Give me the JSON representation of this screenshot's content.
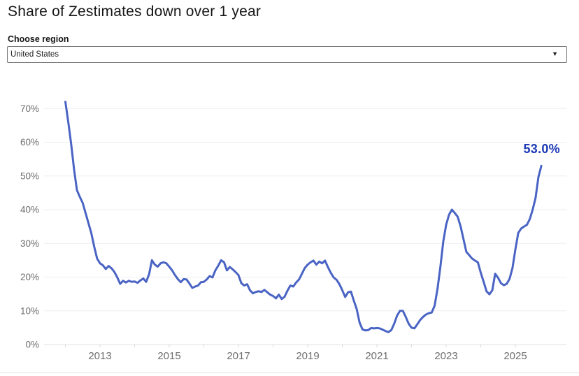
{
  "header": {
    "title": "Share of Zestimates down over 1 year"
  },
  "region": {
    "label": "Choose region",
    "selected": "United States"
  },
  "chart_data": {
    "type": "line",
    "title": "Share of Zestimates down over 1 year",
    "series_name": "United States",
    "frequency": "monthly",
    "start": {
      "year": 2012,
      "month": 1
    },
    "end": {
      "year": 2025,
      "month": 10
    },
    "unit": "%",
    "end_label": "53.0%",
    "latest_value": 53.0,
    "line_color": "#4a64c4",
    "end_label_color": "#1d39b4",
    "grid": true,
    "ylim": [
      0,
      75
    ],
    "y_axis": {
      "ticks": [
        0,
        10,
        20,
        30,
        40,
        50,
        60,
        70
      ],
      "tick_labels": [
        "0%",
        "10%",
        "20%",
        "30%",
        "40%",
        "50%",
        "60%",
        "70%"
      ]
    },
    "x_axis": {
      "tick_years": [
        2012,
        2013,
        2014,
        2015,
        2016,
        2017,
        2018,
        2019,
        2020,
        2021,
        2022,
        2023,
        2024,
        2025
      ],
      "labeled_years": [
        2013,
        2015,
        2017,
        2019,
        2021,
        2023,
        2025
      ]
    },
    "values": [
      72.0,
      66.0,
      59.5,
      52.0,
      45.8,
      43.8,
      42.0,
      39.0,
      36.0,
      33.0,
      29.0,
      25.5,
      24.1,
      23.5,
      22.4,
      23.3,
      22.6,
      21.5,
      19.9,
      18.0,
      18.9,
      18.4,
      18.9,
      18.6,
      18.7,
      18.3,
      19.0,
      19.6,
      18.6,
      20.8,
      25.0,
      23.7,
      23.1,
      24.1,
      24.4,
      24.1,
      23.1,
      22.0,
      20.6,
      19.4,
      18.5,
      19.4,
      19.3,
      18.1,
      16.8,
      17.2,
      17.5,
      18.5,
      18.6,
      19.3,
      20.3,
      19.9,
      22.0,
      23.4,
      25.0,
      24.4,
      22.0,
      23.0,
      22.3,
      21.5,
      20.6,
      18.2,
      17.5,
      17.9,
      16.1,
      15.2,
      15.6,
      15.8,
      15.6,
      16.2,
      15.5,
      14.8,
      14.4,
      13.7,
      14.8,
      13.5,
      14.2,
      16.0,
      17.5,
      17.2,
      18.4,
      19.3,
      21.0,
      22.7,
      23.7,
      24.4,
      24.9,
      23.7,
      24.6,
      24.1,
      24.9,
      23.0,
      21.3,
      19.9,
      19.2,
      17.9,
      16.1,
      14.1,
      15.5,
      15.7,
      13.0,
      10.5,
      6.5,
      4.5,
      4.2,
      4.3,
      4.9,
      4.8,
      4.9,
      4.8,
      4.4,
      4.0,
      3.7,
      4.3,
      6.2,
      8.6,
      10.0,
      10.0,
      8.2,
      6.2,
      5.0,
      4.8,
      6.0,
      7.3,
      8.2,
      8.9,
      9.3,
      9.5,
      11.5,
      16.5,
      23.0,
      30.5,
      35.5,
      38.5,
      40.0,
      39.0,
      37.9,
      35.1,
      31.3,
      27.5,
      26.5,
      25.5,
      24.9,
      24.4,
      21.3,
      18.6,
      15.8,
      14.9,
      16.1,
      21.0,
      19.8,
      18.2,
      17.6,
      18.0,
      19.5,
      22.7,
      28.2,
      33.1,
      34.4,
      35.0,
      35.5,
      37.2,
      40.0,
      43.5,
      49.7,
      53.0
    ]
  }
}
